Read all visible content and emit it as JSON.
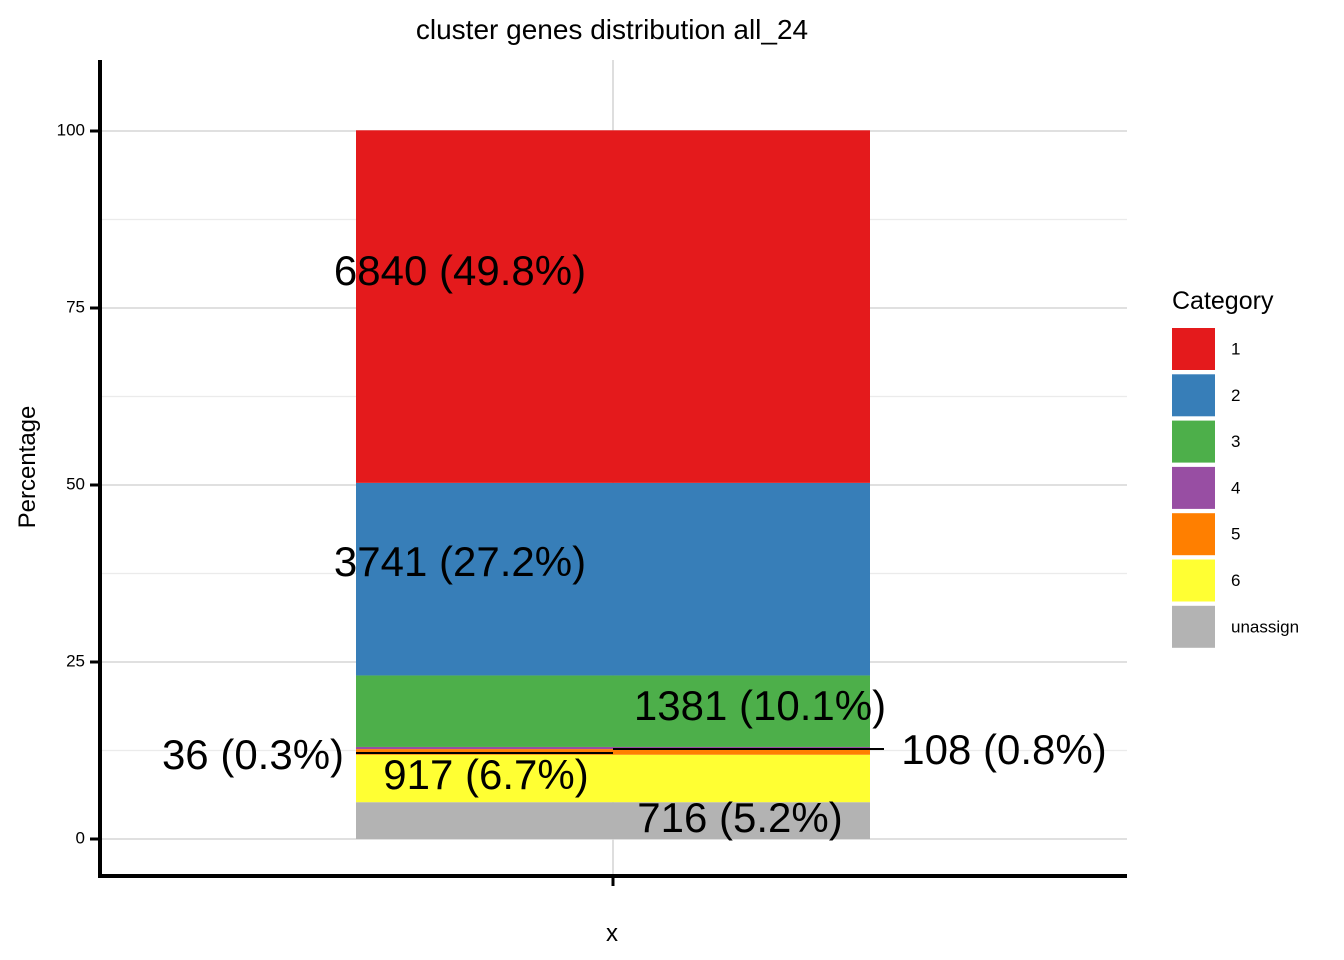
{
  "chart_data": {
    "type": "bar",
    "stacked": true,
    "title": "cluster genes distribution all_24",
    "xlabel": "x",
    "ylabel": "Percentage",
    "categories": [
      ""
    ],
    "ylim": [
      -5,
      110
    ],
    "yticks": [
      0,
      25,
      50,
      75,
      100
    ],
    "grid": true,
    "legend": {
      "title": "Category",
      "position": "right"
    },
    "series": [
      {
        "name": "1",
        "count": 6840,
        "values": [
          49.8
        ],
        "label": "6840 (49.8%)",
        "color": "#e41a1c"
      },
      {
        "name": "2",
        "count": 3741,
        "values": [
          27.2
        ],
        "label": "3741 (27.2%)",
        "color": "#377eb8"
      },
      {
        "name": "3",
        "count": 1381,
        "values": [
          10.1
        ],
        "label": "1381 (10.1%)",
        "color": "#4daf4a"
      },
      {
        "name": "4",
        "count": 36,
        "values": [
          0.3
        ],
        "label": "36 (0.3%)",
        "color": "#984ea3"
      },
      {
        "name": "5",
        "count": 108,
        "values": [
          0.8
        ],
        "label": "108 (0.8%)",
        "color": "#ff7f00"
      },
      {
        "name": "6",
        "count": 917,
        "values": [
          6.7
        ],
        "label": "917 (6.7%)",
        "color": "#ffff33"
      },
      {
        "name": "unassign",
        "count": 716,
        "values": [
          5.2
        ],
        "label": "716 (5.2%)",
        "color": "#b3b3b3"
      }
    ]
  }
}
